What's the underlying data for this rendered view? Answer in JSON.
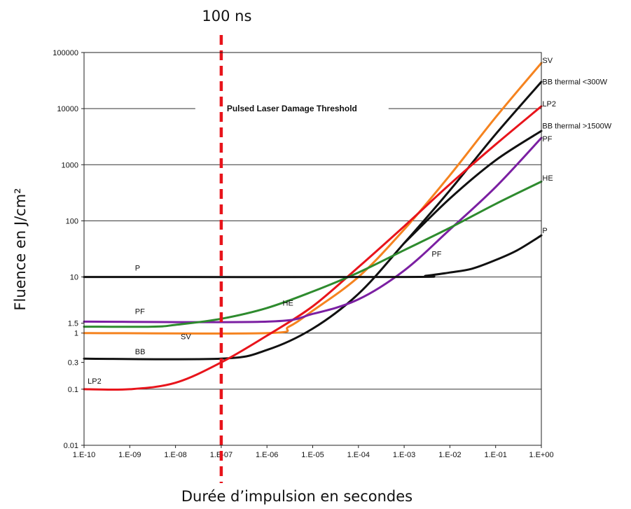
{
  "chart_data": {
    "type": "line",
    "title": "",
    "xlabel": "Durée d’impulsion en secondes",
    "ylabel": "Fluence en J/cm²",
    "x_scale": "log",
    "y_scale": "log",
    "xlim": [
      1e-10,
      1
    ],
    "ylim": [
      0.01,
      100000
    ],
    "grid": "horizontal",
    "x_ticks": [
      {
        "value": 1e-10,
        "label": "1.E-10"
      },
      {
        "value": 1e-09,
        "label": "1.E-09"
      },
      {
        "value": 1e-08,
        "label": "1.E-08"
      },
      {
        "value": 1e-07,
        "label": "1.E-07"
      },
      {
        "value": 1e-06,
        "label": "1.E-06"
      },
      {
        "value": 1e-05,
        "label": "1.E-05"
      },
      {
        "value": 0.0001,
        "label": "1.E-04"
      },
      {
        "value": 0.001,
        "label": "1.E-03"
      },
      {
        "value": 0.01,
        "label": "1.E-02"
      },
      {
        "value": 0.1,
        "label": "1.E-01"
      },
      {
        "value": 1,
        "label": "1.E+00"
      }
    ],
    "y_ticks": [
      {
        "value": 100000,
        "label": "100000"
      },
      {
        "value": 10000,
        "label": "10000"
      },
      {
        "value": 1000,
        "label": "1000"
      },
      {
        "value": 100,
        "label": "100"
      },
      {
        "value": 10,
        "label": "10"
      },
      {
        "value": 1.5,
        "label": "1.5"
      },
      {
        "value": 1,
        "label": "1"
      },
      {
        "value": 0.3,
        "label": "0.3"
      },
      {
        "value": 0.1,
        "label": "0.1"
      },
      {
        "value": 0.01,
        "label": "0.01"
      }
    ],
    "annotations": [
      {
        "text": "Pulsed Laser Damage Threshold",
        "x": 2e-06,
        "y": 10000
      },
      {
        "text": "100 ns",
        "x": 1e-07
      }
    ],
    "vertical_marker": {
      "x": 1e-07,
      "label": "100 ns",
      "color": "#e8141b"
    },
    "series": [
      {
        "name": "SV",
        "color": "#f5831f",
        "points": [
          [
            1e-10,
            1
          ],
          [
            1e-06,
            1
          ],
          [
            3e-06,
            1.3
          ],
          [
            1e-05,
            2.5
          ],
          [
            0.0001,
            10
          ],
          [
            0.001,
            70
          ],
          [
            0.01,
            650
          ],
          [
            0.1,
            7000
          ],
          [
            1,
            65000
          ]
        ],
        "labels": [
          {
            "text": "SV",
            "x": 1.3e-08,
            "y": 0.78
          },
          {
            "text": "SV",
            "x": 1.05,
            "y": 65000
          }
        ]
      },
      {
        "name": "BB thermal <300W",
        "color": "#111111",
        "points": [
          [
            1e-10,
            0.35
          ],
          [
            1e-07,
            0.35
          ],
          [
            1e-06,
            0.5
          ],
          [
            1e-05,
            1.2
          ],
          [
            0.0001,
            5
          ],
          [
            0.001,
            40
          ],
          [
            0.01,
            350
          ],
          [
            0.1,
            3500
          ],
          [
            1,
            30000
          ]
        ],
        "labels": [
          {
            "text": "BB",
            "x": 1.3e-09,
            "y": 0.42
          },
          {
            "text": "BB thermal <300W",
            "x": 1.05,
            "y": 27000
          }
        ]
      },
      {
        "name": "BB thermal >1500W",
        "color": "#111111",
        "points": [
          [
            0.001,
            40
          ],
          [
            0.01,
            250
          ],
          [
            0.1,
            1200
          ],
          [
            1,
            4000
          ]
        ],
        "labels": [
          {
            "text": "BB thermal >1500W",
            "x": 1.05,
            "y": 4400
          }
        ]
      },
      {
        "name": "LP2",
        "color": "#e8141b",
        "points": [
          [
            1e-10,
            0.1
          ],
          [
            1e-09,
            0.1
          ],
          [
            1e-08,
            0.13
          ],
          [
            1e-07,
            0.3
          ],
          [
            1e-06,
            0.9
          ],
          [
            1e-05,
            3
          ],
          [
            0.0001,
            15
          ],
          [
            0.001,
            80
          ],
          [
            0.01,
            450
          ],
          [
            0.1,
            2300
          ],
          [
            1,
            11000
          ]
        ],
        "labels": [
          {
            "text": "LP2",
            "x": 1.2e-10,
            "y": 0.125
          },
          {
            "text": "LP2",
            "x": 1.05,
            "y": 11000
          }
        ]
      },
      {
        "name": "PF",
        "color": "#7b1fa2",
        "points": [
          [
            1e-10,
            1.6
          ],
          [
            1e-06,
            1.6
          ],
          [
            1e-05,
            2.2
          ],
          [
            0.0001,
            4
          ],
          [
            0.001,
            13
          ],
          [
            0.01,
            70
          ],
          [
            0.1,
            400
          ],
          [
            1,
            3000
          ]
        ],
        "labels": [
          {
            "text": "PF",
            "x": 1.3e-09,
            "y": 2.2
          },
          {
            "text": "PF",
            "x": 1.05,
            "y": 2600
          },
          {
            "text": "PF",
            "x": 0.004,
            "y": 23
          }
        ]
      },
      {
        "name": "HE",
        "color": "#2e8b2e",
        "points": [
          [
            1e-10,
            1.3
          ],
          [
            3e-09,
            1.3
          ],
          [
            1e-08,
            1.4
          ],
          [
            1e-07,
            1.8
          ],
          [
            1e-06,
            2.8
          ],
          [
            1e-05,
            5.5
          ],
          [
            0.0001,
            12
          ],
          [
            0.001,
            30
          ],
          [
            0.01,
            75
          ],
          [
            0.1,
            200
          ],
          [
            1,
            500
          ]
        ],
        "labels": [
          {
            "text": "HE",
            "x": 2.2e-06,
            "y": 3.1
          },
          {
            "text": "HE",
            "x": 1.05,
            "y": 520
          }
        ]
      },
      {
        "name": "P",
        "color": "#111111",
        "points": [
          [
            1e-10,
            10
          ],
          [
            0.001,
            10
          ],
          [
            0.003,
            10.5
          ],
          [
            0.01,
            12
          ],
          [
            0.03,
            14
          ],
          [
            0.1,
            20
          ],
          [
            0.3,
            30
          ],
          [
            1,
            55
          ]
        ],
        "labels": [
          {
            "text": "P",
            "x": 1.3e-09,
            "y": 13
          },
          {
            "text": "P",
            "x": 1.05,
            "y": 60
          }
        ]
      }
    ]
  }
}
